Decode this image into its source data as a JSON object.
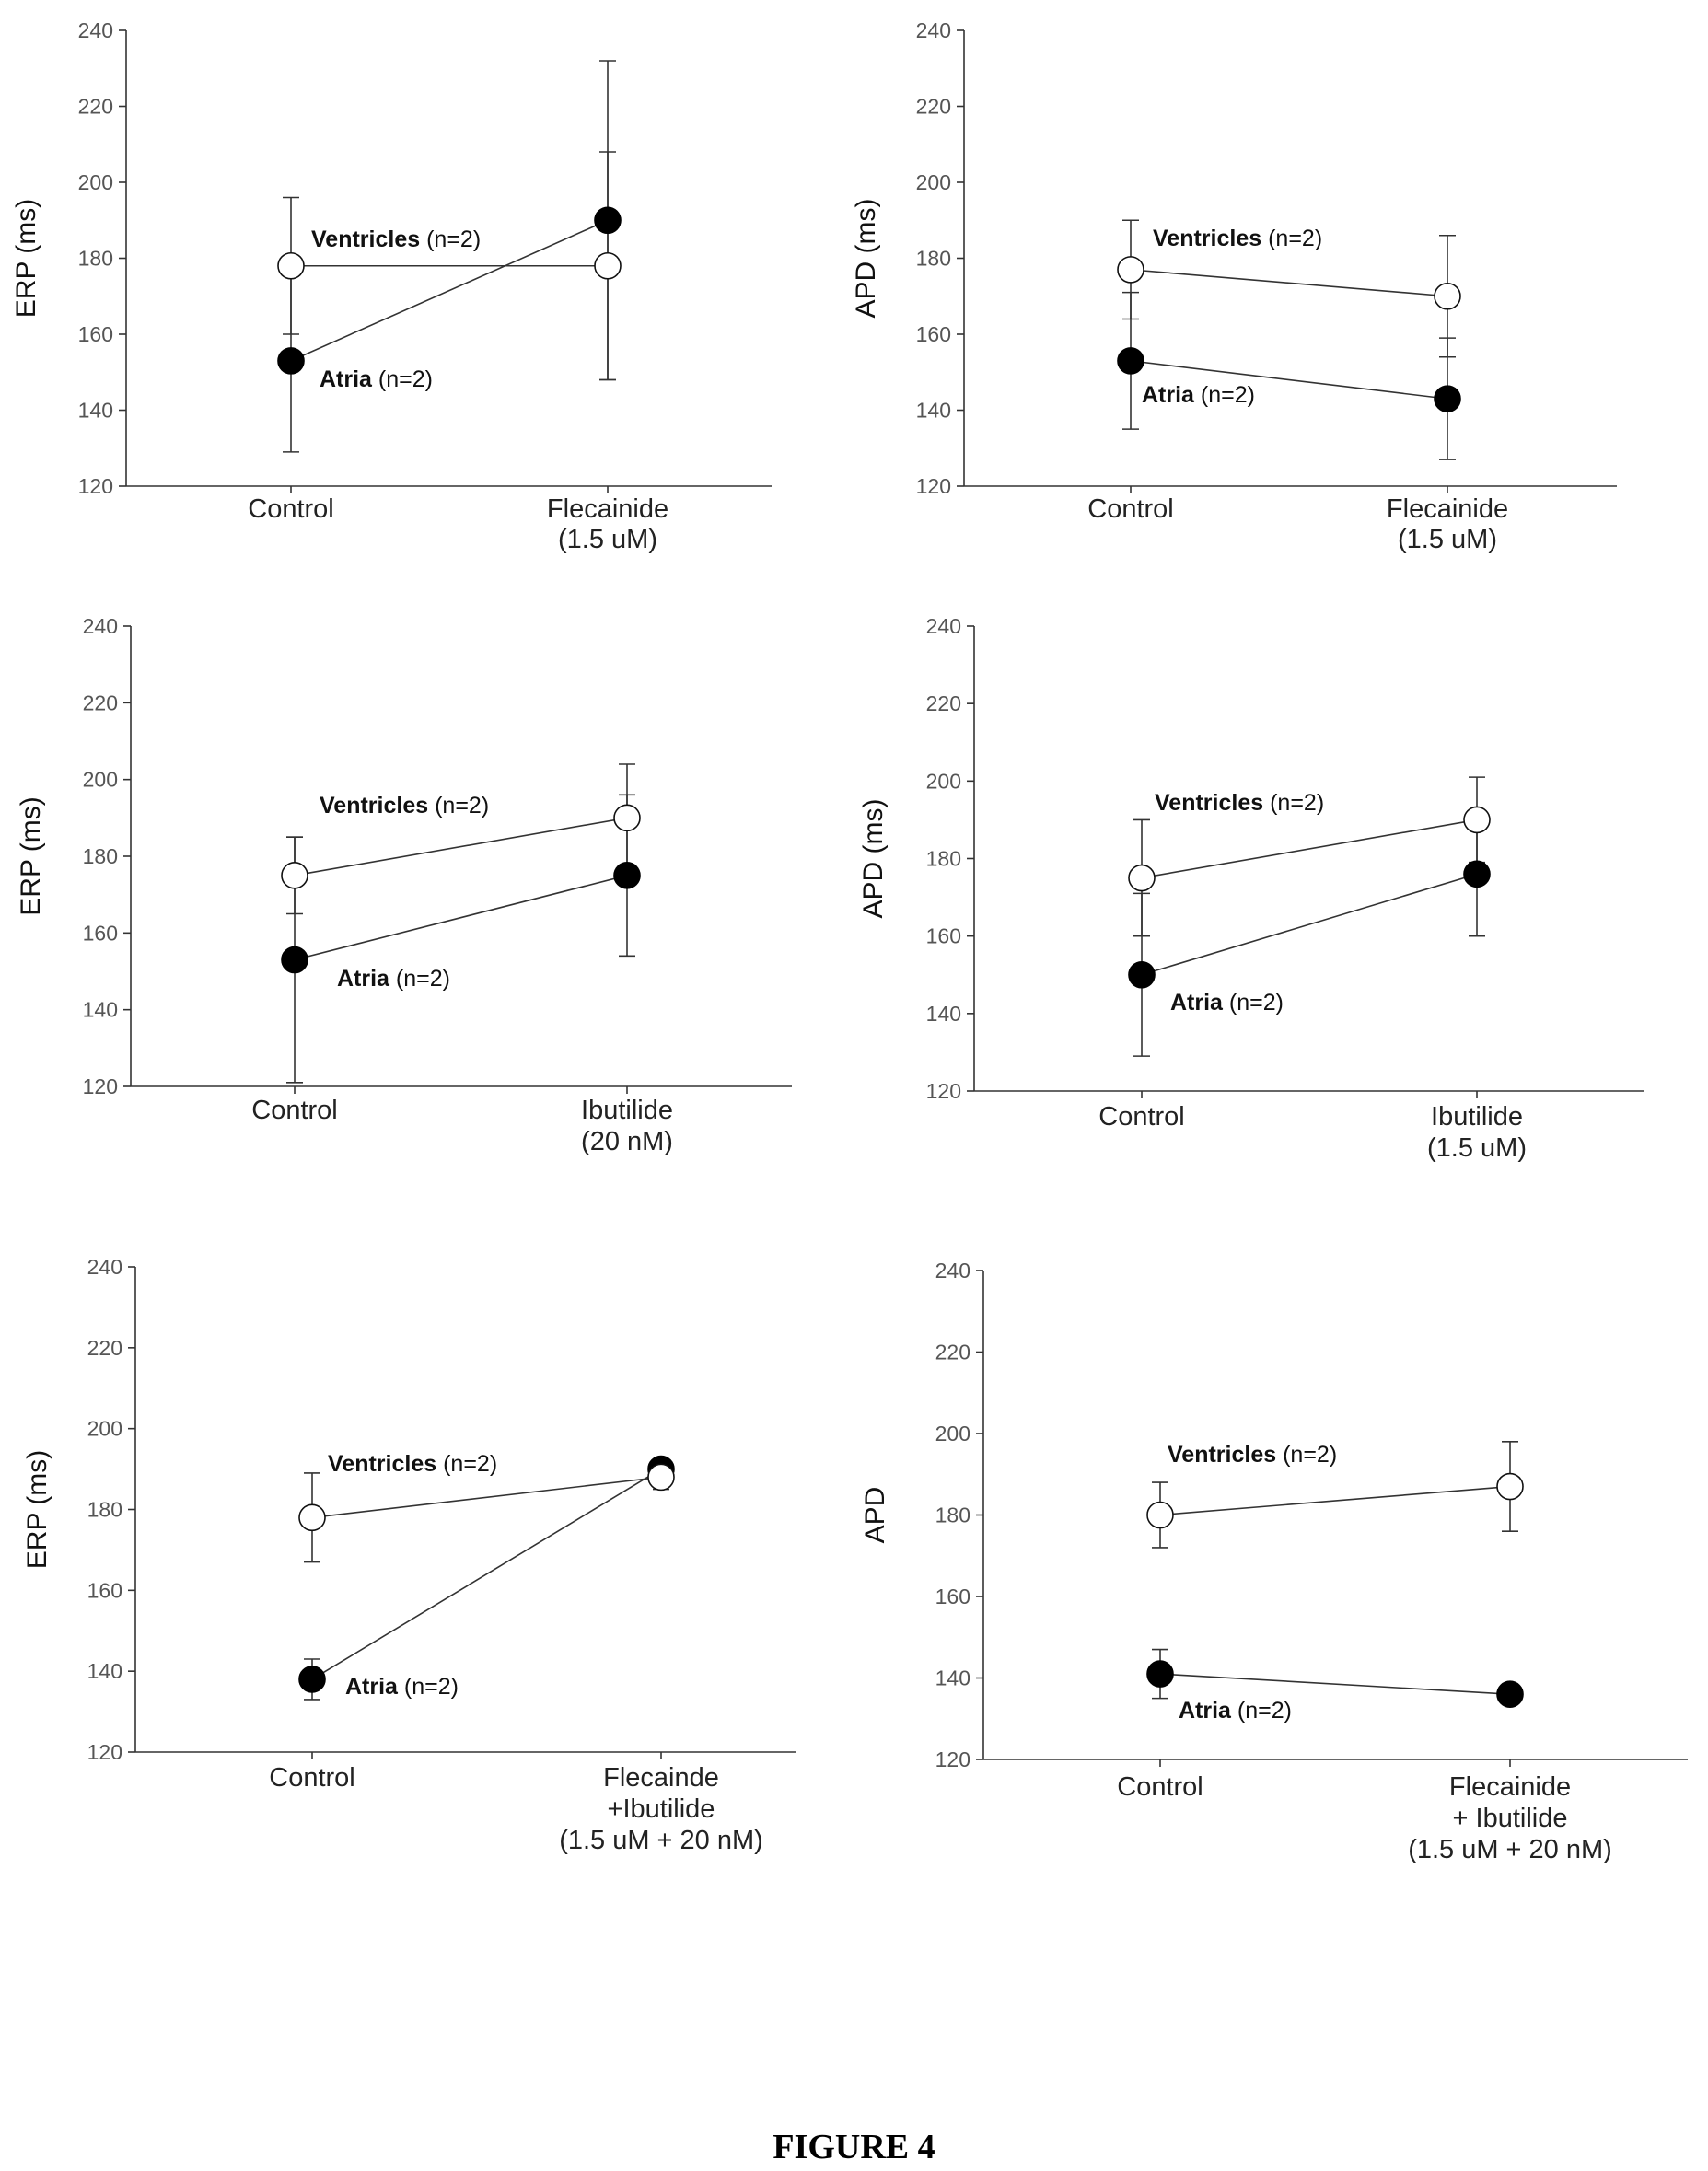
{
  "figure_caption": "FIGURE 4",
  "chart_data": [
    {
      "type": "line",
      "ylabel": "ERP (ms)",
      "ylim": [
        120,
        240
      ],
      "yticks": [
        120,
        140,
        160,
        180,
        200,
        220,
        240
      ],
      "categories": [
        [
          "Control"
        ],
        [
          "Flecainide",
          "(1.5 uM)"
        ]
      ],
      "series": [
        {
          "name": "Ventricles",
          "n_label": "(n=2)",
          "marker": "open",
          "values": [
            178,
            178
          ],
          "error": [
            18,
            30
          ]
        },
        {
          "name": "Atria",
          "n_label": "(n=2)",
          "marker": "filled",
          "values": [
            153,
            190
          ],
          "error": [
            24,
            42
          ]
        }
      ]
    },
    {
      "type": "line",
      "ylabel": "APD (ms)",
      "ylim": [
        120,
        240
      ],
      "yticks": [
        120,
        140,
        160,
        180,
        200,
        220,
        240
      ],
      "categories": [
        [
          "Control"
        ],
        [
          "Flecainide",
          "(1.5 uM)"
        ]
      ],
      "series": [
        {
          "name": "Ventricles",
          "n_label": "(n=2)",
          "marker": "open",
          "values": [
            177,
            170
          ],
          "error": [
            13,
            16
          ]
        },
        {
          "name": "Atria",
          "n_label": "(n=2)",
          "marker": "filled",
          "values": [
            153,
            143
          ],
          "error": [
            18,
            16
          ]
        }
      ]
    },
    {
      "type": "line",
      "ylabel": "ERP (ms)",
      "ylim": [
        120,
        240
      ],
      "yticks": [
        120,
        140,
        160,
        180,
        200,
        220,
        240
      ],
      "categories": [
        [
          "Control"
        ],
        [
          "Ibutilide",
          "(20 nM)"
        ]
      ],
      "series": [
        {
          "name": "Ventricles",
          "n_label": "(n=2)",
          "marker": "open",
          "values": [
            175,
            190
          ],
          "error": [
            10,
            14
          ]
        },
        {
          "name": "Atria",
          "n_label": "(n=2)",
          "marker": "filled",
          "values": [
            153,
            175
          ],
          "error": [
            32,
            21
          ]
        }
      ]
    },
    {
      "type": "line",
      "ylabel": "APD (ms)",
      "ylim": [
        120,
        240
      ],
      "yticks": [
        120,
        140,
        160,
        180,
        200,
        220,
        240
      ],
      "categories": [
        [
          "Control"
        ],
        [
          "Ibutilide",
          "(1.5 uM)"
        ]
      ],
      "series": [
        {
          "name": "Ventricles",
          "n_label": "(n=2)",
          "marker": "open",
          "values": [
            175,
            190
          ],
          "error": [
            15,
            11
          ]
        },
        {
          "name": "Atria",
          "n_label": "(n=2)",
          "marker": "filled",
          "values": [
            150,
            176
          ],
          "error": [
            21,
            16
          ]
        }
      ]
    },
    {
      "type": "line",
      "ylabel": "ERP (ms)",
      "ylim": [
        120,
        240
      ],
      "yticks": [
        120,
        140,
        160,
        180,
        200,
        220,
        240
      ],
      "categories": [
        [
          "Control"
        ],
        [
          "Flecainde",
          "+Ibutilide",
          "(1.5 uM + 20 nM)"
        ]
      ],
      "series": [
        {
          "name": "Ventricles",
          "n_label": "(n=2)",
          "marker": "open",
          "values": [
            178,
            188
          ],
          "error": [
            11,
            3
          ]
        },
        {
          "name": "Atria",
          "n_label": "(n=2)",
          "marker": "filled",
          "values": [
            138,
            190
          ],
          "error": [
            5,
            2
          ]
        }
      ]
    },
    {
      "type": "line",
      "ylabel": "APD",
      "ylim": [
        120,
        240
      ],
      "yticks": [
        120,
        140,
        160,
        180,
        200,
        220,
        240
      ],
      "categories": [
        [
          "Control"
        ],
        [
          "Flecainide",
          "+ Ibutilide",
          "(1.5 uM + 20 nM)"
        ]
      ],
      "series": [
        {
          "name": "Ventricles",
          "n_label": "(n=2)",
          "marker": "open",
          "values": [
            180,
            187
          ],
          "error": [
            8,
            11
          ]
        },
        {
          "name": "Atria",
          "n_label": "(n=2)",
          "marker": "filled",
          "values": [
            141,
            136
          ],
          "error": [
            6,
            0
          ]
        }
      ]
    }
  ]
}
